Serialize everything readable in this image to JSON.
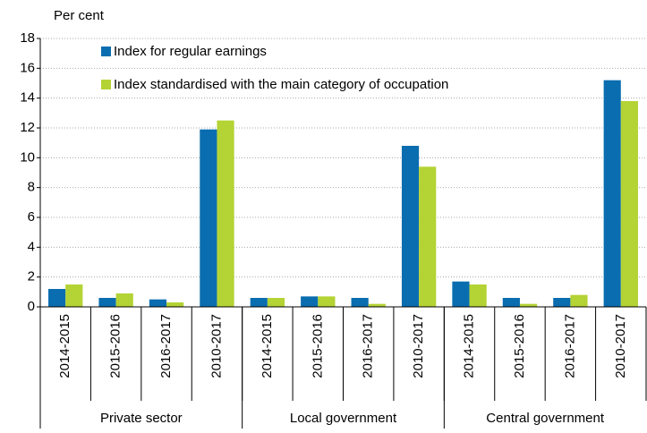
{
  "chart_data": {
    "type": "bar",
    "ylabel": "Per cent",
    "categories": [
      "2014-2015",
      "2015-2016",
      "2016-2017",
      "2010-2017",
      "2014-2015",
      "2015-2016",
      "2016-2017",
      "2010-2017",
      "2014-2015",
      "2015-2016",
      "2016-2017",
      "2010-2017"
    ],
    "groups": [
      "Private sector",
      "Local government",
      "Central government"
    ],
    "series": [
      {
        "name": "Index for regular earnings",
        "color": "#0a6db0",
        "values": [
          1.2,
          0.6,
          0.5,
          11.9,
          0.6,
          0.7,
          0.6,
          10.8,
          1.7,
          0.6,
          0.6,
          15.2
        ]
      },
      {
        "name": "Index standardised with the main category of occupation",
        "color": "#b4d334",
        "values": [
          1.5,
          0.9,
          0.3,
          12.5,
          0.6,
          0.7,
          0.2,
          9.4,
          1.5,
          0.2,
          0.8,
          13.8
        ]
      }
    ],
    "ylim": [
      0,
      18
    ],
    "yticks": [
      0,
      2,
      4,
      6,
      8,
      10,
      12,
      14,
      16,
      18
    ],
    "grid": true,
    "legend": "upper left"
  }
}
